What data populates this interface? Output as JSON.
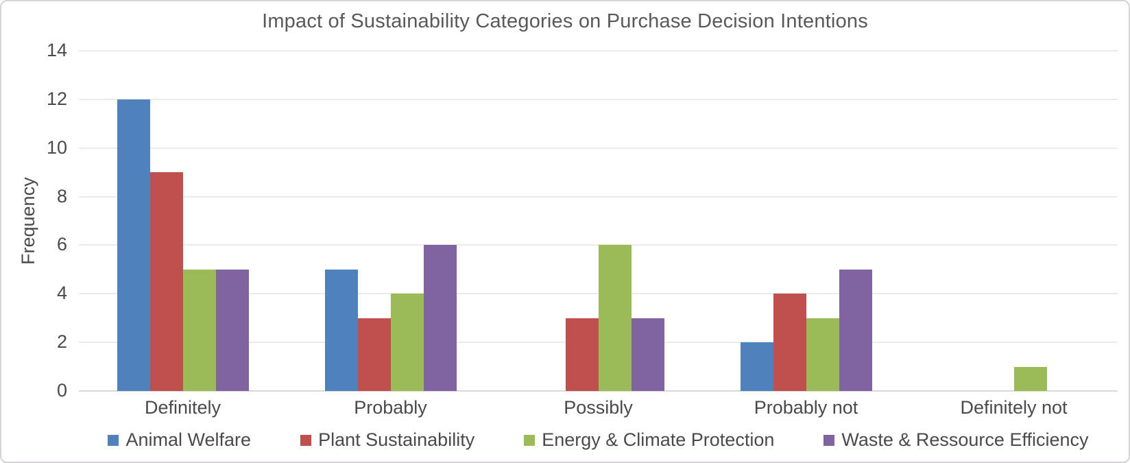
{
  "chart_data": {
    "type": "bar",
    "title": "Impact of Sustainability Categories on Purchase Decision Intentions",
    "xlabel": "",
    "ylabel": "Frequency",
    "ylim": [
      0,
      14
    ],
    "yticks": [
      0,
      2,
      4,
      6,
      8,
      10,
      12,
      14
    ],
    "grid": true,
    "legend_position": "bottom",
    "categories": [
      "Definitely",
      "Probably",
      "Possibly",
      "Probably not",
      "Definitely not"
    ],
    "series": [
      {
        "name": "Animal Welfare",
        "color": "#4F81BD",
        "values": [
          12,
          5,
          0,
          2,
          0
        ]
      },
      {
        "name": "Plant Sustainability",
        "color": "#C0504D",
        "values": [
          9,
          3,
          3,
          4,
          0
        ]
      },
      {
        "name": "Energy & Climate Protection",
        "color": "#9BBB59",
        "values": [
          5,
          4,
          6,
          3,
          1
        ]
      },
      {
        "name": "Waste & Ressource Efficiency",
        "color": "#8064A2",
        "values": [
          5,
          6,
          3,
          5,
          0
        ]
      }
    ]
  }
}
